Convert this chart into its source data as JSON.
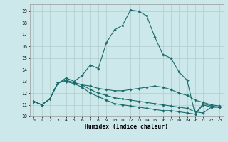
{
  "xlabel": "Humidex (Indice chaleur)",
  "bg_color": "#cce8ea",
  "grid_color": "#b0cccc",
  "line_color": "#1a6b6b",
  "xlim": [
    -0.5,
    23.5
  ],
  "ylim": [
    10.0,
    19.6
  ],
  "yticks": [
    10,
    11,
    12,
    13,
    14,
    15,
    16,
    17,
    18,
    19
  ],
  "xticks": [
    0,
    1,
    2,
    3,
    4,
    5,
    6,
    7,
    8,
    9,
    10,
    11,
    12,
    13,
    14,
    15,
    16,
    17,
    18,
    19,
    20,
    21,
    22,
    23
  ],
  "line1": [
    11.3,
    11.0,
    11.5,
    12.8,
    13.3,
    13.0,
    13.5,
    14.4,
    14.1,
    16.3,
    17.4,
    17.8,
    19.1,
    19.0,
    18.6,
    16.8,
    15.3,
    15.0,
    13.8,
    13.1,
    10.2,
    11.1,
    10.9,
    10.8
  ],
  "line2": [
    11.3,
    11.0,
    11.5,
    12.9,
    13.0,
    12.9,
    12.7,
    12.6,
    12.4,
    12.3,
    12.2,
    12.2,
    12.3,
    12.4,
    12.5,
    12.6,
    12.5,
    12.3,
    12.0,
    11.8,
    11.4,
    11.2,
    11.0,
    10.9
  ],
  "line3": [
    11.3,
    11.0,
    11.5,
    12.9,
    13.1,
    12.9,
    12.7,
    12.3,
    12.0,
    11.8,
    11.6,
    11.5,
    11.4,
    11.3,
    11.2,
    11.1,
    11.0,
    10.9,
    10.8,
    10.7,
    10.4,
    10.3,
    10.8,
    10.8
  ],
  "line4": [
    11.3,
    11.0,
    11.5,
    12.9,
    13.0,
    12.8,
    12.5,
    12.0,
    11.7,
    11.4,
    11.1,
    11.0,
    10.9,
    10.8,
    10.7,
    10.6,
    10.5,
    10.5,
    10.4,
    10.3,
    10.2,
    11.0,
    10.8,
    10.8
  ]
}
